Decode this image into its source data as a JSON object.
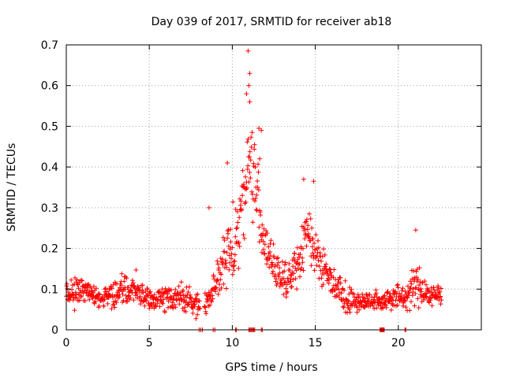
{
  "chart_data": {
    "type": "scatter",
    "title": "Day 039 of 2017, SRMTID for receiver ab18",
    "xlabel": "GPS time / hours",
    "ylabel": "SRMTID / TECUs",
    "xlim": [
      0,
      25
    ],
    "ylim": [
      0,
      0.7
    ],
    "xticks": [
      0,
      5,
      10,
      15,
      20
    ],
    "xtick_labels": [
      "0",
      "5",
      "10",
      "15",
      "20"
    ],
    "yticks": [
      0,
      0.1,
      0.2,
      0.3,
      0.4,
      0.5,
      0.6,
      0.7
    ],
    "ytick_labels": [
      "0",
      "0.1",
      "0.2",
      "0.3",
      "0.4",
      "0.5",
      "0.6",
      "0.7"
    ],
    "grid": true,
    "marker": "+",
    "color": "#ff0000",
    "series_name": "SRMTID",
    "profile": {
      "description": "approximate envelope of the scattered points (hours, TECU)",
      "hours": [
        0,
        1,
        2,
        3,
        4,
        5,
        6,
        7,
        7.8,
        8.5,
        9,
        9.5,
        10,
        10.4,
        10.8,
        11,
        11.3,
        11.6,
        12,
        12.5,
        13,
        13.5,
        14,
        14.3,
        14.6,
        15,
        15.5,
        16,
        16.5,
        17,
        18,
        19,
        19.5,
        20,
        20.5,
        21,
        21.5,
        22,
        22.6
      ],
      "median": [
        0.09,
        0.1,
        0.08,
        0.09,
        0.1,
        0.07,
        0.08,
        0.08,
        0.06,
        0.07,
        0.12,
        0.16,
        0.2,
        0.26,
        0.36,
        0.42,
        0.38,
        0.3,
        0.2,
        0.15,
        0.13,
        0.13,
        0.16,
        0.22,
        0.24,
        0.2,
        0.15,
        0.12,
        0.1,
        0.07,
        0.07,
        0.07,
        0.08,
        0.08,
        0.08,
        0.11,
        0.1,
        0.08,
        0.09
      ],
      "spread": [
        0.03,
        0.04,
        0.025,
        0.03,
        0.04,
        0.025,
        0.03,
        0.03,
        0.025,
        0.03,
        0.05,
        0.07,
        0.09,
        0.1,
        0.12,
        0.12,
        0.1,
        0.09,
        0.06,
        0.05,
        0.045,
        0.045,
        0.06,
        0.07,
        0.07,
        0.06,
        0.05,
        0.04,
        0.035,
        0.03,
        0.025,
        0.025,
        0.03,
        0.03,
        0.03,
        0.05,
        0.04,
        0.03,
        0.03
      ]
    },
    "peaks": [
      {
        "x": 10.95,
        "y": 0.685
      },
      {
        "x": 11.05,
        "y": 0.63
      },
      {
        "x": 11.0,
        "y": 0.6
      },
      {
        "x": 10.85,
        "y": 0.58
      },
      {
        "x": 11.05,
        "y": 0.56
      },
      {
        "x": 11.6,
        "y": 0.495
      },
      {
        "x": 11.75,
        "y": 0.49
      },
      {
        "x": 11.65,
        "y": 0.42
      },
      {
        "x": 9.7,
        "y": 0.41
      },
      {
        "x": 14.9,
        "y": 0.365
      },
      {
        "x": 14.3,
        "y": 0.37
      },
      {
        "x": 21.05,
        "y": 0.245
      },
      {
        "x": 8.6,
        "y": 0.3
      }
    ],
    "zero_clusters": [
      {
        "from": 8.0,
        "to": 8.2,
        "count": 3
      },
      {
        "from": 8.85,
        "to": 8.95,
        "count": 2
      },
      {
        "from": 10.2,
        "to": 10.25,
        "count": 2
      },
      {
        "from": 11.0,
        "to": 11.35,
        "count": 7
      },
      {
        "from": 11.75,
        "to": 11.8,
        "count": 2
      },
      {
        "from": 18.9,
        "to": 19.15,
        "count": 8
      },
      {
        "from": 20.4,
        "to": 20.45,
        "count": 2
      }
    ],
    "gaps": [
      {
        "from": 8.05,
        "to": 8.3
      },
      {
        "from": 22.7,
        "to": 25
      }
    ],
    "time_step_hours": 0.021
  }
}
